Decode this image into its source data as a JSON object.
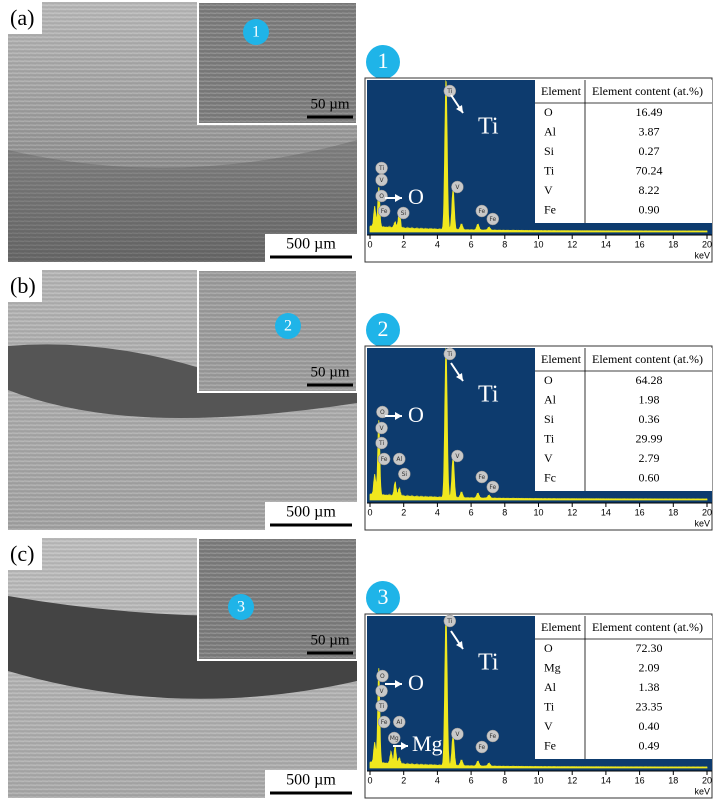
{
  "panels": [
    {
      "label": "(a)",
      "scale_bar": "500 µm",
      "inset_scale_bar": "50 µm",
      "marker": "1",
      "spectrum": {
        "xticks": [
          0,
          2,
          4,
          6,
          8,
          10,
          12,
          14,
          16,
          18,
          20
        ],
        "xunit": "keV",
        "peak_labels": [
          "Ti",
          "V",
          "O",
          "Fe",
          "Si",
          "Ti",
          "V",
          "Fe",
          "Fe"
        ],
        "annotations": [
          "Ti",
          "O"
        ]
      },
      "table": {
        "header": [
          "Element",
          "Element content (at.%)"
        ],
        "rows": [
          [
            "O",
            "16.49"
          ],
          [
            "Al",
            "3.87"
          ],
          [
            "Si",
            "0.27"
          ],
          [
            "Ti",
            "70.24"
          ],
          [
            "V",
            "8.22"
          ],
          [
            "Fe",
            "0.90"
          ]
        ]
      }
    },
    {
      "label": "(b)",
      "scale_bar": "500 µm",
      "inset_scale_bar": "50 µm",
      "marker": "2",
      "spectrum": {
        "xticks": [
          0,
          2,
          4,
          6,
          8,
          10,
          12,
          14,
          16,
          18,
          20
        ],
        "xunit": "keV",
        "peak_labels": [
          "O",
          "V",
          "Ti",
          "Fe",
          "Al",
          "Si",
          "Ti",
          "V",
          "Fe",
          "Fe"
        ],
        "annotations": [
          "Ti",
          "O"
        ]
      },
      "table": {
        "header": [
          "Element",
          "Element content (at.%)"
        ],
        "rows": [
          [
            "O",
            "64.28"
          ],
          [
            "Al",
            "1.98"
          ],
          [
            "Si",
            "0.36"
          ],
          [
            "Ti",
            "29.99"
          ],
          [
            "V",
            "2.79"
          ],
          [
            "Fc",
            "0.60"
          ]
        ]
      }
    },
    {
      "label": "(c)",
      "scale_bar": "500 µm",
      "inset_scale_bar": "50 µm",
      "marker": "3",
      "spectrum": {
        "xticks": [
          0,
          2,
          4,
          6,
          8,
          10,
          12,
          14,
          16,
          18,
          20
        ],
        "xunit": "keV",
        "peak_labels": [
          "O",
          "V",
          "Ti",
          "Fe",
          "Al",
          "Mg",
          "Ti",
          "V",
          "Fe",
          "Fe"
        ],
        "annotations": [
          "Ti",
          "O",
          "Mg"
        ]
      },
      "table": {
        "header": [
          "Element",
          "Element content (at.%)"
        ],
        "rows": [
          [
            "O",
            "72.30"
          ],
          [
            "Mg",
            "2.09"
          ],
          [
            "Al",
            "1.38"
          ],
          [
            "Ti",
            "23.35"
          ],
          [
            "V",
            "0.40"
          ],
          [
            "Fe",
            "0.49"
          ]
        ]
      }
    }
  ]
}
